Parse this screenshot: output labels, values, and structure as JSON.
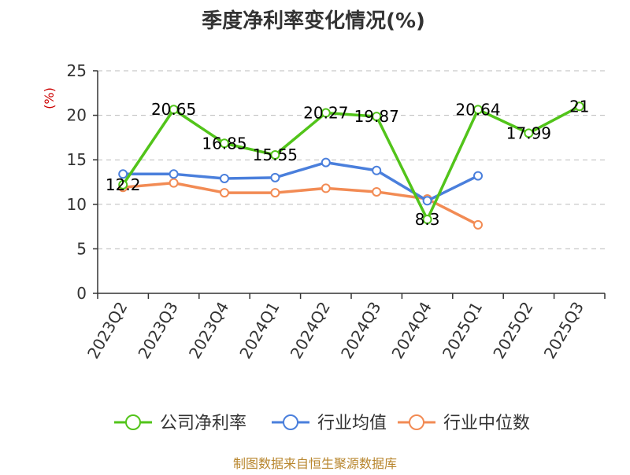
{
  "chart_data": {
    "type": "line",
    "title": "季度净利率变化情况(%)",
    "ylabel": "(%)",
    "xlabel": "",
    "categories": [
      "2023Q2",
      "2023Q3",
      "2023Q4",
      "2024Q1",
      "2024Q2",
      "2024Q3",
      "2024Q4",
      "2025Q1",
      "2025Q2",
      "2025Q3"
    ],
    "ylim": [
      0,
      25
    ],
    "yticks": [
      0,
      5,
      10,
      15,
      20,
      25
    ],
    "grid": true,
    "legend_position": "bottom",
    "series": [
      {
        "name": "公司净利率",
        "color": "#52c41a",
        "values": [
          12.2,
          20.65,
          16.85,
          15.55,
          20.27,
          19.87,
          8.3,
          20.64,
          17.99,
          21
        ],
        "labels": [
          "12.2",
          "20.65",
          "16.85",
          "15.55",
          "20.27",
          "19.87",
          "8.3",
          "20.64",
          "17.99",
          "21"
        ]
      },
      {
        "name": "行业均值",
        "color": "#4a7fdc",
        "values": [
          13.4,
          13.4,
          12.9,
          13.0,
          14.7,
          13.8,
          10.4,
          13.2,
          null,
          null
        ]
      },
      {
        "name": "行业中位数",
        "color": "#f28b54",
        "values": [
          11.9,
          12.4,
          11.3,
          11.3,
          11.8,
          11.4,
          10.6,
          7.7,
          null,
          null
        ]
      }
    ],
    "source": "制图数据来自恒生聚源数据库"
  }
}
